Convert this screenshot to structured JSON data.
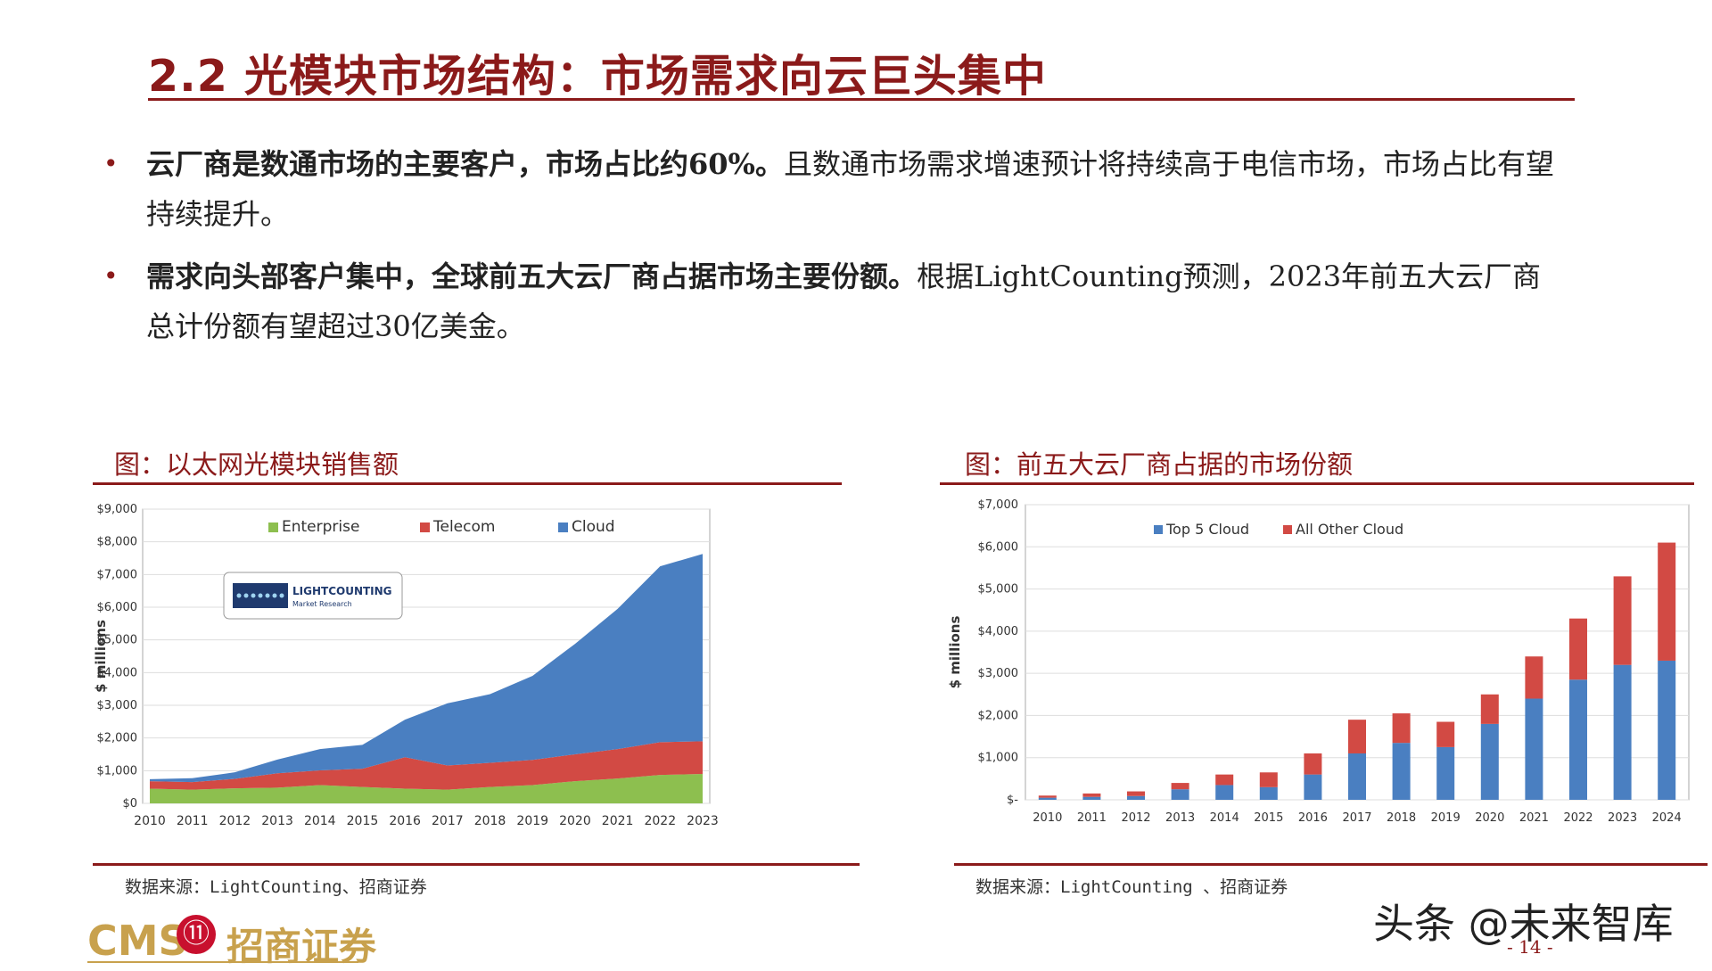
{
  "header": {
    "title": "2.2 光模块市场结构：市场需求向云巨头集中"
  },
  "bullets": [
    {
      "bold": "云厂商是数通市场的主要客户，市场占比约60%。",
      "text": "且数通市场需求增速预计将持续高于电信市场，市场占比有望持续提升。"
    },
    {
      "bold": "需求向头部客户集中，全球前五大云厂商占据市场主要份额。",
      "text": "根据LightCounting预测，2023年前五大云厂商总计份额有望超过30亿美金。"
    }
  ],
  "left_panel": {
    "caption": "图：以太网光模块销售额",
    "source": "数据来源：LightCounting、招商证券",
    "logo_line1": "LIGHTCOUNTING",
    "logo_line2": "Market Research"
  },
  "right_panel": {
    "caption": "图：前五大云厂商占据的市场份额",
    "source": "数据来源：LightCounting 、招商证券"
  },
  "footer": {
    "brand_latin": "CMS",
    "brand_cn": "招商证券",
    "brand_emblem": "⑪",
    "page_number": "- 14 -",
    "watermark": "头条 @未来智库"
  },
  "colors": {
    "accent": "#8b1a1a",
    "enterprise": "#8dbf4f",
    "telecom": "#d24a44",
    "cloud": "#4a7fc1",
    "top5": "#4a7fc1",
    "other": "#d24a44"
  },
  "chart_data": [
    {
      "type": "area",
      "stacked": true,
      "x": [
        "2010",
        "2011",
        "2012",
        "2013",
        "2014",
        "2015",
        "2016",
        "2017",
        "2018",
        "2019",
        "2020",
        "2021",
        "2022",
        "2023"
      ],
      "series": [
        {
          "name": "Enterprise",
          "values": [
            450,
            420,
            460,
            480,
            560,
            500,
            450,
            420,
            500,
            560,
            680,
            760,
            870,
            900
          ]
        },
        {
          "name": "Telecom",
          "values": [
            230,
            230,
            290,
            440,
            450,
            560,
            960,
            740,
            740,
            770,
            820,
            900,
            1000,
            1000
          ]
        },
        {
          "name": "Cloud",
          "values": [
            60,
            120,
            200,
            420,
            650,
            730,
            1150,
            1900,
            2100,
            2570,
            3380,
            4290,
            5380,
            5730
          ]
        }
      ],
      "ylabel": "$ millions",
      "yticks": [
        "$0",
        "$1,000",
        "$2,000",
        "$3,000",
        "$4,000",
        "$5,000",
        "$6,000",
        "$7,000",
        "$8,000",
        "$9,000"
      ],
      "ylim": [
        0,
        9000
      ],
      "legend": "top",
      "grid": true
    },
    {
      "type": "bar",
      "stacked": true,
      "categories": [
        "2010",
        "2011",
        "2012",
        "2013",
        "2014",
        "2015",
        "2016",
        "2017",
        "2018",
        "2019",
        "2020",
        "2021",
        "2022",
        "2023",
        "2024"
      ],
      "series": [
        {
          "name": "Top 5 Cloud",
          "values": [
            50,
            70,
            90,
            250,
            350,
            300,
            600,
            1100,
            1350,
            1250,
            1800,
            2400,
            2850,
            3200,
            3300
          ]
        },
        {
          "name": "All Other Cloud",
          "values": [
            50,
            80,
            110,
            150,
            250,
            350,
            500,
            800,
            700,
            600,
            700,
            1000,
            1450,
            2100,
            2800
          ]
        }
      ],
      "ylabel": "$ millions",
      "yticks": [
        "$-",
        "$1,000",
        "$2,000",
        "$3,000",
        "$4,000",
        "$5,000",
        "$6,000",
        "$7,000"
      ],
      "ylim": [
        0,
        7000
      ],
      "legend": "top",
      "grid": true
    }
  ]
}
